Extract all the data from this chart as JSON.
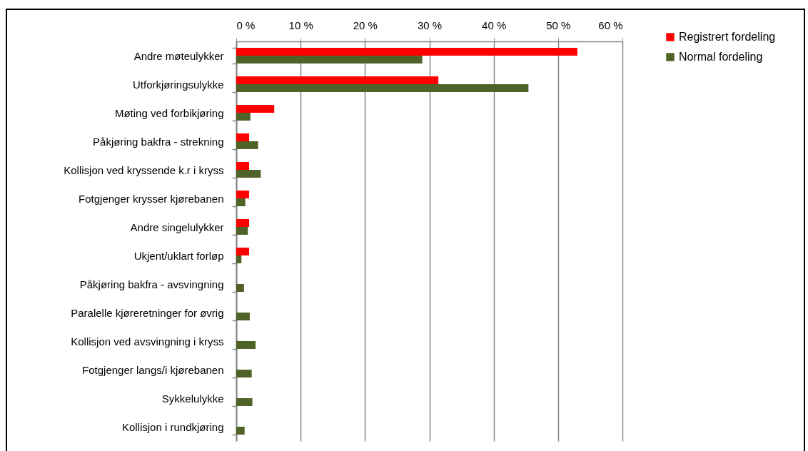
{
  "chart_data": {
    "type": "bar",
    "orientation": "horizontal",
    "categories": [
      "Andre møteulykker",
      "Utforkjøringsulykke",
      "Møting ved forbikjøring",
      "Påkjøring bakfra - strekning",
      "Kollisjon ved kryssende k.r i kryss",
      "Fotgjenger krysser kjørebanen",
      "Andre singelulykker",
      "Ukjent/uklart forløp",
      "Påkjøring bakfra - avsvingning",
      "Paralelle kjøreretninger for øvrig",
      "Kollisjon ved avsvingning i kryss",
      "Fotgjenger langs/i kjørebanen",
      "Sykkelulykke",
      "Kollisjon i rundkjøring"
    ],
    "series": [
      {
        "name": "Registrert fordeling",
        "color": "#ff0000",
        "values": [
          53,
          31.4,
          5.9,
          2,
          2,
          2,
          2,
          2,
          null,
          null,
          null,
          null,
          null,
          null
        ]
      },
      {
        "name": "Normal fordeling",
        "color": "#4f6228",
        "values": [
          28.9,
          45.4,
          2.2,
          3.4,
          3.8,
          1.4,
          1.8,
          0.8,
          1.2,
          2.1,
          3,
          2.4,
          2.5,
          1.3
        ]
      }
    ],
    "xlim": [
      0,
      60
    ],
    "xticks": [
      {
        "value": 0,
        "label": "0 %"
      },
      {
        "value": 10,
        "label": "10 %"
      },
      {
        "value": 20,
        "label": "20 %"
      },
      {
        "value": 30,
        "label": "30 %"
      },
      {
        "value": 40,
        "label": "40 %"
      },
      {
        "value": 50,
        "label": "50 %"
      },
      {
        "value": 60,
        "label": "60 %"
      }
    ],
    "grid": "x",
    "legend": "top right"
  }
}
